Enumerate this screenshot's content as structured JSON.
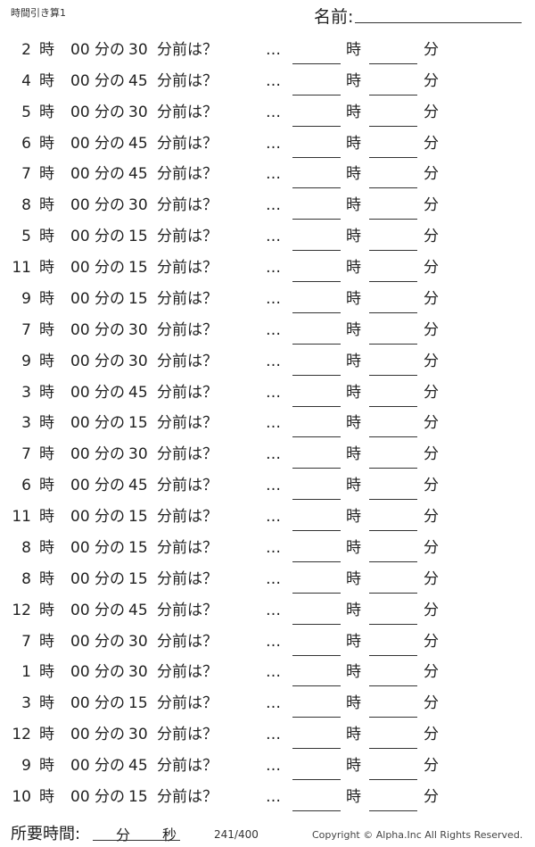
{
  "header": {
    "title": "時間引き算1",
    "name_label": "名前:"
  },
  "labels": {
    "hour": "時",
    "min_of": "分の",
    "min_before": "分前は？",
    "ellipsis": "…",
    "ans_hour": "時",
    "ans_min": "分"
  },
  "problems": [
    {
      "hour": "2",
      "min": "00",
      "sub": "30"
    },
    {
      "hour": "4",
      "min": "00",
      "sub": "45"
    },
    {
      "hour": "5",
      "min": "00",
      "sub": "30"
    },
    {
      "hour": "6",
      "min": "00",
      "sub": "45"
    },
    {
      "hour": "7",
      "min": "00",
      "sub": "45"
    },
    {
      "hour": "8",
      "min": "00",
      "sub": "30"
    },
    {
      "hour": "5",
      "min": "00",
      "sub": "15"
    },
    {
      "hour": "11",
      "min": "00",
      "sub": "15"
    },
    {
      "hour": "9",
      "min": "00",
      "sub": "15"
    },
    {
      "hour": "7",
      "min": "00",
      "sub": "30"
    },
    {
      "hour": "9",
      "min": "00",
      "sub": "30"
    },
    {
      "hour": "3",
      "min": "00",
      "sub": "45"
    },
    {
      "hour": "3",
      "min": "00",
      "sub": "15"
    },
    {
      "hour": "7",
      "min": "00",
      "sub": "30"
    },
    {
      "hour": "6",
      "min": "00",
      "sub": "45"
    },
    {
      "hour": "11",
      "min": "00",
      "sub": "15"
    },
    {
      "hour": "8",
      "min": "00",
      "sub": "15"
    },
    {
      "hour": "8",
      "min": "00",
      "sub": "15"
    },
    {
      "hour": "12",
      "min": "00",
      "sub": "45"
    },
    {
      "hour": "7",
      "min": "00",
      "sub": "30"
    },
    {
      "hour": "1",
      "min": "00",
      "sub": "30"
    },
    {
      "hour": "3",
      "min": "00",
      "sub": "15"
    },
    {
      "hour": "12",
      "min": "00",
      "sub": "30"
    },
    {
      "hour": "9",
      "min": "00",
      "sub": "45"
    },
    {
      "hour": "10",
      "min": "00",
      "sub": "15"
    }
  ],
  "footer": {
    "time_label": "所要時間:",
    "min": "分",
    "sec": "秒",
    "page": "241/400",
    "copyright": "Copyright ©  Alpha.Inc All Rights Reserved."
  }
}
